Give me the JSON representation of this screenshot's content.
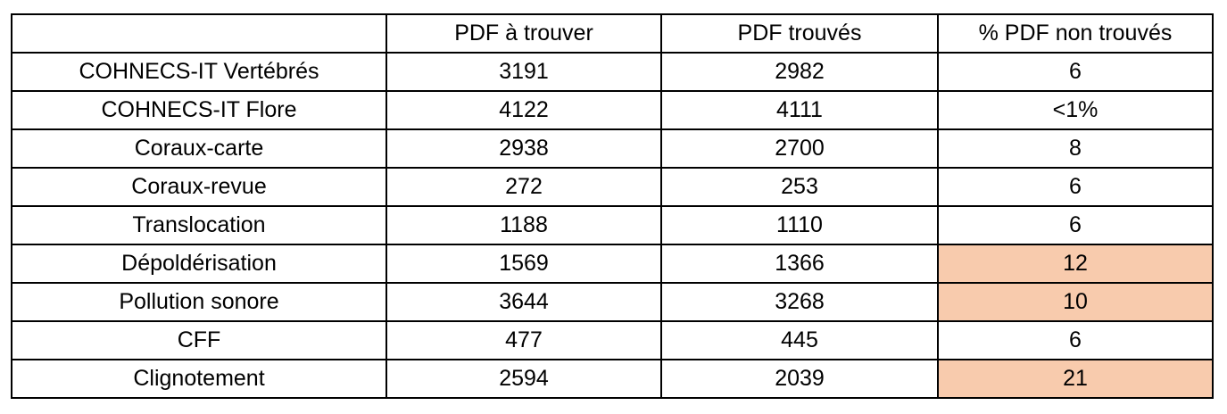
{
  "table": {
    "headers": [
      "",
      "PDF à trouver",
      "PDF trouvés",
      "% PDF non trouvés"
    ],
    "highlight_color": "#f8cbad",
    "rows": [
      {
        "label": "COHNECS-IT Vertébrés",
        "pdf_a_trouver": "3191",
        "pdf_trouves": "2982",
        "pct_non_trouves": "6",
        "highlight": false
      },
      {
        "label": "COHNECS-IT Flore",
        "pdf_a_trouver": "4122",
        "pdf_trouves": "4111",
        "pct_non_trouves": "<1%",
        "highlight": false
      },
      {
        "label": "Coraux-carte",
        "pdf_a_trouver": "2938",
        "pdf_trouves": "2700",
        "pct_non_trouves": "8",
        "highlight": false
      },
      {
        "label": "Coraux-revue",
        "pdf_a_trouver": "272",
        "pdf_trouves": "253",
        "pct_non_trouves": "6",
        "highlight": false
      },
      {
        "label": "Translocation",
        "pdf_a_trouver": "1188",
        "pdf_trouves": "1110",
        "pct_non_trouves": "6",
        "highlight": false
      },
      {
        "label": "Dépoldérisation",
        "pdf_a_trouver": "1569",
        "pdf_trouves": "1366",
        "pct_non_trouves": "12",
        "highlight": true
      },
      {
        "label": "Pollution sonore",
        "pdf_a_trouver": "3644",
        "pdf_trouves": "3268",
        "pct_non_trouves": "10",
        "highlight": true
      },
      {
        "label": "CFF",
        "pdf_a_trouver": "477",
        "pdf_trouves": "445",
        "pct_non_trouves": "6",
        "highlight": false
      },
      {
        "label": "Clignotement",
        "pdf_a_trouver": "2594",
        "pdf_trouves": "2039",
        "pct_non_trouves": "21",
        "highlight": true
      }
    ]
  }
}
